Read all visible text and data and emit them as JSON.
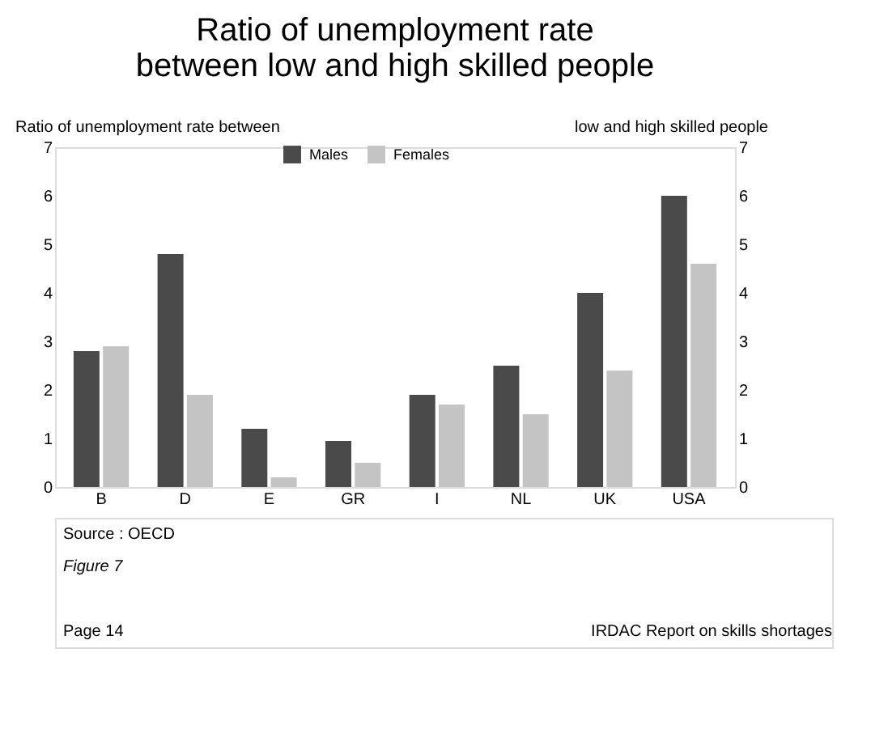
{
  "chart_data": {
    "type": "bar",
    "title": [
      "Ratio of unemployment rate",
      "between low and high skilled people"
    ],
    "ylabel": "Ratio of unemployment rate between",
    "y2label": "low and high skilled people",
    "categories": [
      "B",
      "D",
      "E",
      "GR",
      "I",
      "NL",
      "UK",
      "USA"
    ],
    "series": [
      {
        "name": "Males",
        "color": "#4a4a4a",
        "values": [
          2.8,
          4.8,
          1.2,
          0.95,
          1.9,
          2.5,
          4.0,
          6.0
        ]
      },
      {
        "name": "Females",
        "color": "#c4c4c4",
        "values": [
          2.9,
          1.9,
          0.2,
          0.5,
          1.7,
          1.5,
          2.4,
          4.6
        ]
      }
    ],
    "ylim": [
      0,
      7
    ],
    "yticks": [
      0,
      1,
      2,
      3,
      4,
      5,
      6,
      7
    ],
    "y2lim": [
      0,
      7
    ],
    "y2ticks": [
      0,
      1,
      2,
      3,
      4,
      5,
      6,
      7
    ],
    "legend": "top",
    "grid": false,
    "annotations": [
      "Source : OECD",
      "Figure 7",
      "Page 14",
      "IRDAC Report on skills shortages"
    ]
  }
}
